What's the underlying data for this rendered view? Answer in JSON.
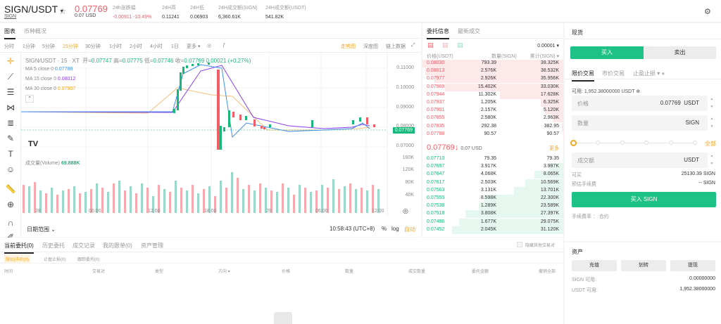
{
  "header": {
    "pair": "SIGN/USDT",
    "pair_sub": "SIGN",
    "last_price": "0.07769",
    "last_usd": "0.07 USD",
    "stats": [
      {
        "label": "24h涨跌幅",
        "value": "-0.00911 -10.49%",
        "color": "#f25c67"
      },
      {
        "label": "24H高",
        "value": "0.11241"
      },
      {
        "label": "24H低",
        "value": "0.06903"
      },
      {
        "label": "24H成交额(SIGN)",
        "value": "6,360.61K"
      },
      {
        "label": "24H成交额(USDT)",
        "value": "541.82K"
      }
    ]
  },
  "chart_panel": {
    "tabs": [
      "图表",
      "币种概况"
    ],
    "timeframes": [
      "分时",
      "1分钟",
      "5分钟",
      "15分钟",
      "30分钟",
      "1小时",
      "2小时",
      "4小时",
      "1日",
      "更多"
    ],
    "active_timeframe": "15分钟",
    "views": [
      "走势图",
      "深度图",
      "链上数据"
    ],
    "active_view": "走势图",
    "ohlc_title": "SIGN/USDT · 15 · XT",
    "ohlc": {
      "open_l": "开=",
      "open": "0.07747",
      "high_l": "高=",
      "high": "0.07775",
      "low_l": "低=",
      "low": "0.07746",
      "close_l": "收=",
      "close": "0.07769",
      "change": "0.00021 (+0.27%)"
    },
    "ma": [
      {
        "label": "MA 5 close 0",
        "value": "0.07788",
        "color": "#3d8ef0"
      },
      {
        "label": "MA 15 close 0",
        "value": "0.08012",
        "color": "#8b3ff0"
      },
      {
        "label": "MA 30 close 0",
        "value": "0.07907",
        "color": "#f5a623"
      }
    ],
    "price_axis": [
      "0.11000",
      "0.10000",
      "0.09000",
      "0.08000",
      "0.07000"
    ],
    "current_price_tag": "0.07769",
    "volume_label": "成交量(Volume)",
    "volume_value": "69.888K",
    "volume_axis": [
      "160K",
      "120K",
      "80K",
      "40K"
    ],
    "time_axis": [
      "28",
      "06:00",
      "12:00",
      "18:00",
      "29",
      "06:00",
      "12:00"
    ],
    "date_range": "日期范围",
    "clock": "10:58:43 (UTC+8)",
    "pct": "%",
    "log": "log",
    "auto": "自动"
  },
  "orderbook": {
    "tabs": [
      "委托信息",
      "最新成交"
    ],
    "precision": "0.00001",
    "headers": [
      "价格(USDT)",
      "数量(SIGN)",
      "累计(SIGN)"
    ],
    "asks": [
      [
        "0.08030",
        "793.39",
        "39.325K"
      ],
      [
        "0.08013",
        "2.576K",
        "38.532K"
      ],
      [
        "0.07977",
        "2.926K",
        "35.956K"
      ],
      [
        "0.07969",
        "15.402K",
        "33.030K"
      ],
      [
        "0.07944",
        "11.302K",
        "17.628K"
      ],
      [
        "0.07937",
        "1.205K",
        "6.325K"
      ],
      [
        "0.07901",
        "2.157K",
        "5.120K"
      ],
      [
        "0.07855",
        "2.580K",
        "2.963K"
      ],
      [
        "0.07835",
        "292.38",
        "382.95"
      ],
      [
        "0.07788",
        "90.57",
        "90.57"
      ]
    ],
    "mid_price": "0.07769",
    "mid_usd": "0.07 USD",
    "more": "更多",
    "bids": [
      [
        "0.07710",
        "79.35",
        "79.35"
      ],
      [
        "0.07697",
        "3.917K",
        "3.997K"
      ],
      [
        "0.07647",
        "4.068K",
        "8.065K"
      ],
      [
        "0.07617",
        "2.503K",
        "10.569K"
      ],
      [
        "0.07563",
        "3.131K",
        "13.701K"
      ],
      [
        "0.07555",
        "8.598K",
        "22.300K"
      ],
      [
        "0.07538",
        "1.289K",
        "23.589K"
      ],
      [
        "0.07518",
        "3.808K",
        "27.397K"
      ],
      [
        "0.07486",
        "1.677K",
        "29.075K"
      ],
      [
        "0.07452",
        "2.045K",
        "31.120K"
      ]
    ]
  },
  "trade": {
    "title": "现货",
    "buy": "买入",
    "sell": "卖出",
    "order_types": [
      "限价交易",
      "市价交易",
      "止盈止损"
    ],
    "available": "可用: 1,952.38000000 USDT",
    "price_label": "价格",
    "price_value": "0.07769",
    "price_unit": "USDT",
    "qty_label": "数量",
    "qty_unit": "SIGN",
    "all": "全部",
    "amount_label": "成交额",
    "amount_unit": "USDT",
    "can_buy_label": "可买",
    "can_buy_value": "25130.39 SIGN",
    "fee_label": "预估手续费",
    "fee_value": "-- SIGN",
    "submit": "买入 SIGN",
    "fee_rate": "手续费率",
    "contract": "合约"
  },
  "assets": {
    "title": "资产",
    "buttons": [
      "充值",
      "划转",
      "提现"
    ],
    "rows": [
      {
        "label": "SIGN 可用:",
        "value": "0.00000000"
      },
      {
        "label": "USDT 可用:",
        "value": "1,952.38000000"
      }
    ]
  },
  "orders": {
    "tabs": [
      "当前委托(0)",
      "历史委托",
      "成交记录",
      "我的跟单(0)",
      "资产管理"
    ],
    "subtabs": [
      "限价|市价(0)",
      "止盈止损(0)",
      "跟踪委托(0)"
    ],
    "hide_others": "隐藏其他交易对",
    "columns": [
      "时间",
      "交易对",
      "类型",
      "方向",
      "价格",
      "数量",
      "成交数量",
      "委托金额",
      "撤销全部"
    ]
  },
  "colors": {
    "up": "#18b87a",
    "down": "#f25c67",
    "accent": "#f5a623",
    "buy": "#1ec287"
  }
}
